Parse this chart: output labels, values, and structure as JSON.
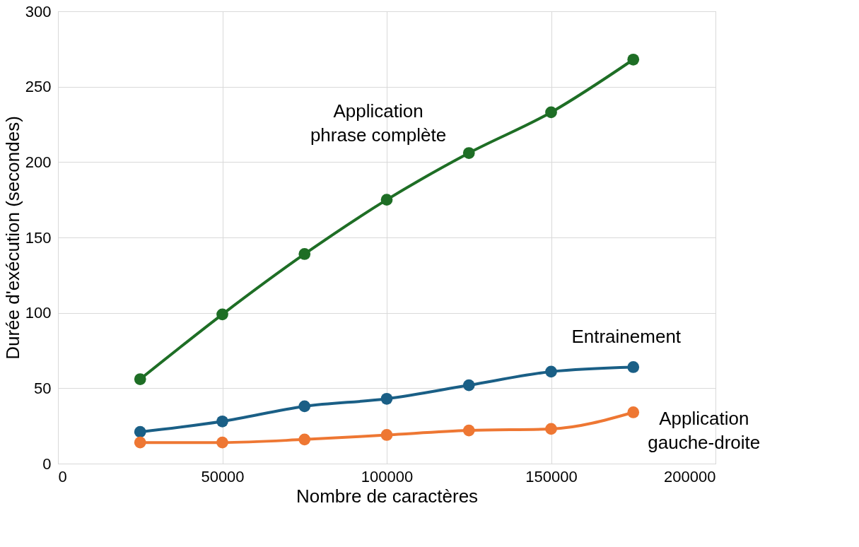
{
  "chart_data": {
    "type": "line",
    "xlabel": "Nombre de caractères",
    "ylabel": "Durée d'exécution (secondes)",
    "x": [
      25000,
      50000,
      75000,
      100000,
      125000,
      150000,
      175000
    ],
    "series": [
      {
        "name": "Application phrase complète",
        "color": "#1e6e25",
        "values": [
          56,
          99,
          139,
          175,
          206,
          233,
          268
        ]
      },
      {
        "name": "Entrainement",
        "color": "#1a5f86",
        "values": [
          21,
          28,
          38,
          43,
          52,
          61,
          64
        ]
      },
      {
        "name": "Application gauche-droite",
        "color": "#ee7733",
        "values": [
          14,
          14,
          16,
          19,
          22,
          23,
          34
        ]
      }
    ],
    "xlim": [
      0,
      200000
    ],
    "xticks": [
      0,
      50000,
      100000,
      150000,
      200000
    ],
    "ylim": [
      0,
      300
    ],
    "yticks": [
      0,
      50,
      100,
      150,
      200,
      250,
      300
    ],
    "grid": true,
    "marker": "circle",
    "line_style": "solid"
  }
}
